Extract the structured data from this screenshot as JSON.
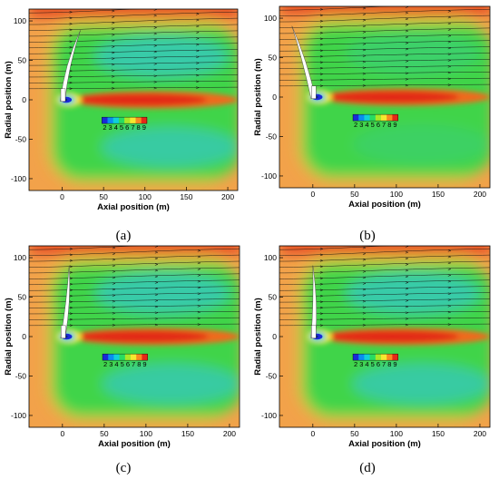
{
  "chart_data": [
    {
      "type": "heatmap",
      "panel": "a",
      "caption": "(a)",
      "xlabel": "Axial position (m)",
      "ylabel": "Radial position (m)",
      "xlim": [
        -40,
        212
      ],
      "ylim": [
        -115,
        115
      ],
      "xticks": [
        0,
        50,
        100,
        150,
        200
      ],
      "yticks": [
        100,
        50,
        0,
        -50,
        -100
      ],
      "colorbar": {
        "labels": [
          "2",
          "3",
          "4",
          "5",
          "6",
          "7",
          "8",
          "9"
        ],
        "colors": [
          "#1a2ad8",
          "#0a8ef0",
          "#10d0d8",
          "#28dc60",
          "#a8e828",
          "#f6e830",
          "#f88a20",
          "#e62818"
        ]
      },
      "blade_tip": {
        "x": 22,
        "y": 88
      },
      "blade_root": {
        "x": 0,
        "y": -2
      },
      "streamlines": true,
      "grid": false
    },
    {
      "type": "heatmap",
      "panel": "b",
      "caption": "(b)",
      "xlabel": "Axial position (m)",
      "ylabel": "Radial position (m)",
      "xlim": [
        -40,
        212
      ],
      "ylim": [
        -115,
        115
      ],
      "xticks": [
        0,
        50,
        100,
        150,
        200
      ],
      "yticks": [
        100,
        50,
        0,
        -50,
        -100
      ],
      "colorbar": {
        "labels": [
          "2",
          "3",
          "4",
          "5",
          "6",
          "7",
          "8",
          "9"
        ],
        "colors": [
          "#1a2ad8",
          "#0a8ef0",
          "#10d0d8",
          "#28dc60",
          "#a8e828",
          "#f6e830",
          "#f88a20",
          "#e62818"
        ]
      },
      "blade_tip": {
        "x": -25,
        "y": 90
      },
      "blade_root": {
        "x": 0,
        "y": -2
      },
      "streamlines": true,
      "grid": false
    },
    {
      "type": "heatmap",
      "panel": "c",
      "caption": "(c)",
      "xlabel": "Axial position (m)",
      "ylabel": "Radial position (m)",
      "xlim": [
        -40,
        212
      ],
      "ylim": [
        -115,
        115
      ],
      "xticks": [
        0,
        50,
        100,
        150,
        200
      ],
      "yticks": [
        100,
        50,
        0,
        -50,
        -100
      ],
      "colorbar": {
        "labels": [
          "2",
          "3",
          "4",
          "5",
          "6",
          "7",
          "8",
          "9"
        ],
        "colors": [
          "#1a2ad8",
          "#0a8ef0",
          "#10d0d8",
          "#28dc60",
          "#a8e828",
          "#f6e830",
          "#f88a20",
          "#e62818"
        ]
      },
      "blade_tip": {
        "x": 8,
        "y": 90
      },
      "blade_root": {
        "x": 0,
        "y": -2
      },
      "streamlines": true,
      "grid": false
    },
    {
      "type": "heatmap",
      "panel": "d",
      "caption": "(d)",
      "xlabel": "Axial position (m)",
      "ylabel": "Radial position (m)",
      "xlim": [
        -40,
        212
      ],
      "ylim": [
        -115,
        115
      ],
      "xticks": [
        0,
        50,
        100,
        150,
        200
      ],
      "yticks": [
        100,
        50,
        0,
        -50,
        -100
      ],
      "colorbar": {
        "labels": [
          "2",
          "3",
          "4",
          "5",
          "6",
          "7",
          "8",
          "9"
        ],
        "colors": [
          "#1a2ad8",
          "#0a8ef0",
          "#10d0d8",
          "#28dc60",
          "#a8e828",
          "#f6e830",
          "#f88a20",
          "#e62818"
        ]
      },
      "blade_tip": {
        "x": 0,
        "y": 90
      },
      "blade_root": {
        "x": 0,
        "y": -2
      },
      "streamlines": true,
      "grid": false
    }
  ]
}
